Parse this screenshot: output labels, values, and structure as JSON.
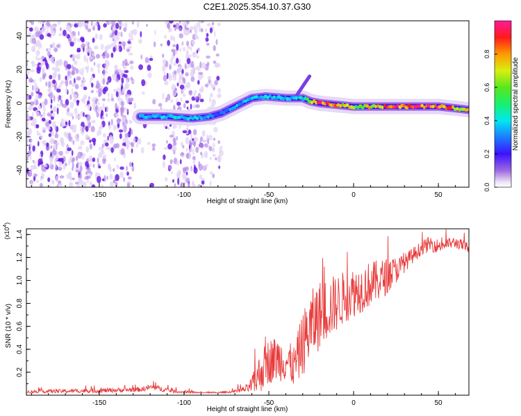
{
  "title": "C2E1.2025.354.10.37.G30",
  "chart_data": [
    {
      "type": "heatmap",
      "title": "C2E1.2025.354.10.37.G30",
      "xlabel": "Height of straight line (km)",
      "ylabel": "Frequency (Hz)",
      "xlim": [
        -193,
        68
      ],
      "ylim": [
        -50,
        49
      ],
      "xticks": [
        -150,
        -100,
        -50,
        0,
        50
      ],
      "yticks": [
        -40,
        -20,
        0,
        20,
        40
      ],
      "colorbar": {
        "label": "Normalized spectral amplitude",
        "range": [
          0.0,
          1.0
        ],
        "ticks": [
          0.0,
          0.2,
          0.4,
          0.6,
          0.8
        ]
      },
      "noise_region_km": [
        -193,
        -78
      ],
      "noise_gap_km": [
        -130,
        -112
      ],
      "trace": {
        "x": [
          -126,
          -110,
          -95,
          -85,
          -78,
          -70,
          -60,
          -52,
          -40,
          -30,
          -25,
          -20,
          -10,
          0,
          10,
          20,
          30,
          40,
          50,
          60,
          68
        ],
        "y": [
          -8,
          -8,
          -9,
          -8,
          -6,
          -2,
          3,
          4,
          3,
          3,
          1,
          0,
          -1,
          -2,
          -2,
          -2,
          -2,
          -2,
          -2,
          -3,
          -4
        ],
        "amplitude": [
          0.35,
          0.4,
          0.4,
          0.35,
          0.3,
          0.35,
          0.4,
          0.4,
          0.4,
          0.45,
          0.65,
          0.9,
          0.8,
          0.7,
          0.75,
          0.9,
          0.95,
          0.95,
          0.95,
          0.8,
          0.7
        ]
      },
      "branch": {
        "x": [
          -34,
          -30,
          -26
        ],
        "y": [
          4,
          10,
          16
        ]
      }
    },
    {
      "type": "line",
      "xlabel": "Height of straight line (km)",
      "ylabel": "SNR (10 * v/v)",
      "multiplier": "(x10",
      "multiplier_exp": "4",
      "multiplier_close": ")",
      "xlim": [
        -193,
        68
      ],
      "ylim": [
        0,
        14500
      ],
      "xticks": [
        -150,
        -100,
        -50,
        0,
        50
      ],
      "yticks": [
        2000,
        4000,
        6000,
        8000,
        10000,
        12000,
        14000
      ],
      "ytick_labels": [
        "0.2",
        "0.4",
        "0.6",
        "0.8",
        "1.0",
        "1.2",
        "1.4"
      ],
      "series": [
        {
          "name": "SNR",
          "color": "#e83a3a",
          "x": [
            -193,
            -150,
            -125,
            -120,
            -115,
            -105,
            -90,
            -80,
            -70,
            -62,
            -58,
            -55,
            -50,
            -45,
            -40,
            -35,
            -30,
            -25,
            -20,
            -15,
            -10,
            -5,
            0,
            5,
            10,
            15,
            20,
            25,
            30,
            35,
            40,
            45,
            50,
            55,
            60,
            65,
            68
          ],
          "base": [
            300,
            400,
            500,
            700,
            600,
            300,
            200,
            200,
            300,
            600,
            1200,
            2000,
            3000,
            3200,
            3000,
            2500,
            4500,
            6000,
            7000,
            7600,
            8000,
            8600,
            9000,
            9300,
            9700,
            10000,
            10400,
            10900,
            11500,
            12200,
            12800,
            13200,
            13000,
            13200,
            13300,
            13000,
            12800
          ],
          "noise": [
            150,
            200,
            200,
            250,
            250,
            150,
            100,
            100,
            150,
            400,
            1200,
            1800,
            2000,
            2000,
            1800,
            1800,
            2800,
            3200,
            3000,
            2800,
            2500,
            2300,
            2200,
            2100,
            2000,
            1800,
            1600,
            1200,
            800,
            700,
            600,
            700,
            600,
            500,
            500,
            500,
            500
          ]
        }
      ]
    }
  ]
}
